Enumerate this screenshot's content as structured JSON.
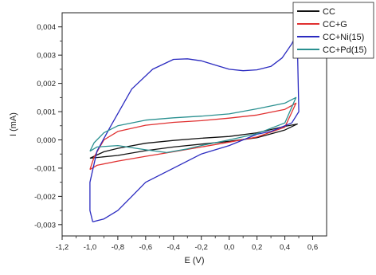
{
  "chart_data": {
    "type": "line",
    "title": "",
    "xlabel": "E (V)",
    "ylabel": "I (mA)",
    "xlim": [
      -1.2,
      0.7
    ],
    "ylim": [
      -0.0034,
      0.0045
    ],
    "x_ticks": [
      "-1,2",
      "-1,0",
      "-0,8",
      "-0,6",
      "-0,4",
      "-0,2",
      "0,0",
      "0,2",
      "0,4",
      "0,6"
    ],
    "y_ticks": [
      "-0,003",
      "-0,002",
      "-0,001",
      "0,000",
      "0,001",
      "0,002",
      "0,003",
      "0,004"
    ],
    "grid": false,
    "legend_position": "top-right-outside",
    "series": [
      {
        "name": "CC",
        "color": "#111111",
        "points": [
          [
            -1.0,
            -0.00065
          ],
          [
            -0.8,
            -0.00055
          ],
          [
            -0.6,
            -0.00038
          ],
          [
            -0.4,
            -0.00025
          ],
          [
            -0.2,
            -0.00015
          ],
          [
            0.0,
            -5e-05
          ],
          [
            0.2,
            8e-05
          ],
          [
            0.4,
            0.00035
          ],
          [
            0.49,
            0.00056
          ],
          [
            0.4,
            0.00048
          ],
          [
            0.2,
            0.00025
          ],
          [
            0.0,
            0.00012
          ],
          [
            -0.2,
            6e-05
          ],
          [
            -0.4,
            -2e-05
          ],
          [
            -0.6,
            -0.00012
          ],
          [
            -0.8,
            -0.0003
          ],
          [
            -0.9,
            -0.00042
          ],
          [
            -1.0,
            -0.00065
          ]
        ]
      },
      {
        "name": "CC+G",
        "color": "#e03030",
        "points": [
          [
            -1.0,
            -0.00105
          ],
          [
            -0.95,
            -0.0009
          ],
          [
            -0.8,
            -0.00075
          ],
          [
            -0.6,
            -0.00058
          ],
          [
            -0.4,
            -0.00042
          ],
          [
            -0.2,
            -0.00025
          ],
          [
            0.0,
            -8e-05
          ],
          [
            0.2,
            0.0001
          ],
          [
            0.4,
            0.00045
          ],
          [
            0.48,
            0.0013
          ],
          [
            0.4,
            0.00108
          ],
          [
            0.2,
            0.00088
          ],
          [
            0.0,
            0.00077
          ],
          [
            -0.2,
            0.00068
          ],
          [
            -0.4,
            0.00062
          ],
          [
            -0.6,
            0.00052
          ],
          [
            -0.8,
            0.0003
          ],
          [
            -0.9,
            0.0
          ],
          [
            -0.97,
            -0.0006
          ],
          [
            -1.0,
            -0.00105
          ]
        ]
      },
      {
        "name": "CC+Ni(15)",
        "color": "#2b2bc0",
        "points": [
          [
            -0.98,
            -0.0029
          ],
          [
            -1.0,
            -0.0025
          ],
          [
            -1.0,
            -0.0015
          ],
          [
            -0.95,
            -0.0004
          ],
          [
            -0.85,
            0.0005
          ],
          [
            -0.7,
            0.0018
          ],
          [
            -0.55,
            0.0025
          ],
          [
            -0.4,
            0.00285
          ],
          [
            -0.3,
            0.00287
          ],
          [
            -0.2,
            0.0028
          ],
          [
            -0.1,
            0.00265
          ],
          [
            0.0,
            0.0025
          ],
          [
            0.1,
            0.00245
          ],
          [
            0.2,
            0.00248
          ],
          [
            0.3,
            0.0026
          ],
          [
            0.38,
            0.0029
          ],
          [
            0.45,
            0.0034
          ],
          [
            0.47,
            0.0036
          ],
          [
            0.49,
            0.0034
          ],
          [
            0.5,
            0.001
          ],
          [
            0.45,
            0.0006
          ],
          [
            0.3,
            0.0003
          ],
          [
            0.2,
            0.0002
          ],
          [
            0.1,
            0.0
          ],
          [
            0.0,
            -0.0002
          ],
          [
            -0.2,
            -0.0005
          ],
          [
            -0.4,
            -0.001
          ],
          [
            -0.6,
            -0.0015
          ],
          [
            -0.7,
            -0.002
          ],
          [
            -0.8,
            -0.0025
          ],
          [
            -0.9,
            -0.0028
          ],
          [
            -0.98,
            -0.0029
          ]
        ]
      },
      {
        "name": "CC+Pd(15)",
        "color": "#2a9090",
        "points": [
          [
            -1.0,
            -0.0004
          ],
          [
            -0.95,
            -0.00025
          ],
          [
            -0.8,
            -0.0002
          ],
          [
            -0.6,
            -0.00035
          ],
          [
            -0.45,
            -0.00045
          ],
          [
            -0.3,
            -0.00032
          ],
          [
            -0.2,
            -0.0002
          ],
          [
            0.0,
            0.0
          ],
          [
            0.2,
            0.00022
          ],
          [
            0.4,
            0.0006
          ],
          [
            0.48,
            0.0015
          ],
          [
            0.4,
            0.0013
          ],
          [
            0.2,
            0.0011
          ],
          [
            0.0,
            0.00092
          ],
          [
            -0.2,
            0.00084
          ],
          [
            -0.4,
            0.00078
          ],
          [
            -0.6,
            0.0007
          ],
          [
            -0.8,
            0.0005
          ],
          [
            -0.9,
            0.00025
          ],
          [
            -0.97,
            -0.0001
          ],
          [
            -1.0,
            -0.0004
          ]
        ]
      }
    ]
  }
}
